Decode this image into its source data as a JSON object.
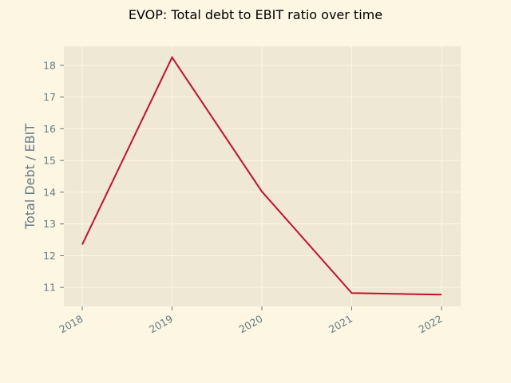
{
  "chart_data": {
    "type": "line",
    "title": "EVOP: Total debt to EBIT ratio over time",
    "xlabel": "",
    "ylabel": "Total Debt / EBIT",
    "x": [
      "2018",
      "2019",
      "2020",
      "2021",
      "2022"
    ],
    "series": [
      {
        "values": [
          12.35,
          18.25,
          14.02,
          10.82,
          10.77
        ]
      }
    ],
    "yticks": [
      11,
      12,
      13,
      14,
      15,
      16,
      17,
      18
    ],
    "ylim": [
      10.4,
      18.6
    ],
    "grid": true,
    "legend": "none",
    "colors": {
      "line": "#c8102e",
      "plot_background": "#eee8d5",
      "figure_background": "#fdf6e3",
      "grid": "#fdf6e3",
      "tick_text": "#657b83"
    }
  }
}
